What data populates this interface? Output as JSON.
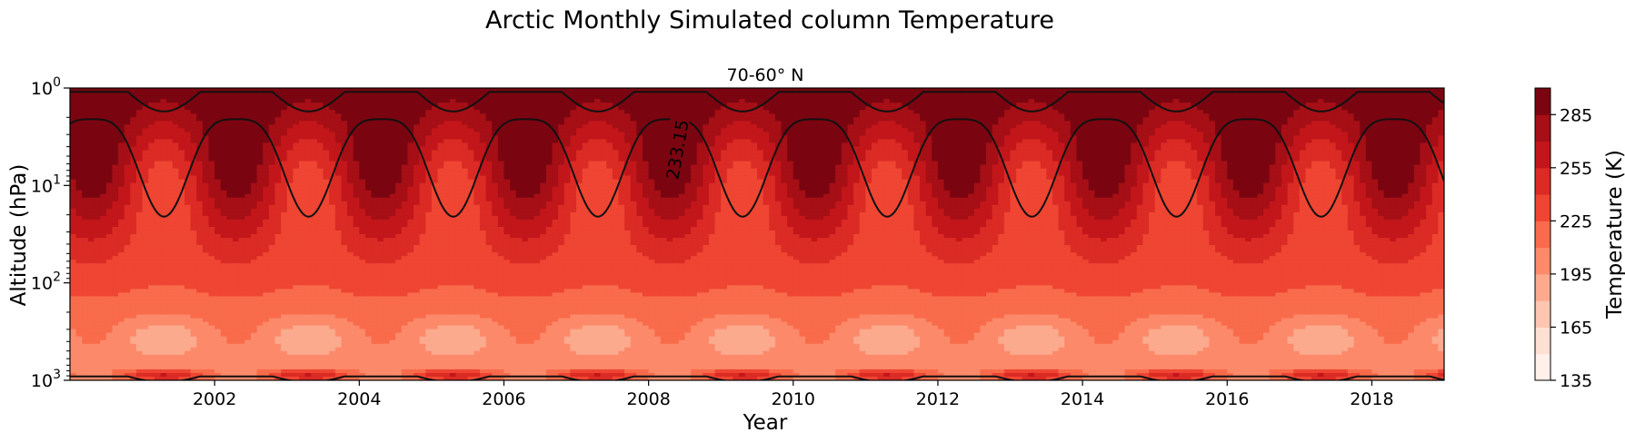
{
  "chart_data": {
    "type": "heatmap",
    "subtype": "filled-contour",
    "title": "Arctic Monthly Simulated column Temperature",
    "subtitle": "70-60° N",
    "xlabel": "Year",
    "ylabel": "Altitude (hPa)",
    "x_ticks": [
      "2002",
      "2004",
      "2006",
      "2008",
      "2010",
      "2012",
      "2014",
      "2016",
      "2018"
    ],
    "x_tick_values": [
      2002,
      2004,
      2006,
      2008,
      2010,
      2012,
      2014,
      2016,
      2018
    ],
    "xlim": [
      2000,
      2019
    ],
    "y_scale": "log",
    "y_inverted": true,
    "y_ticks": [
      {
        "base": "10",
        "exp": "0",
        "value": 1
      },
      {
        "base": "10",
        "exp": "1",
        "value": 10
      },
      {
        "base": "10",
        "exp": "2",
        "value": 100
      },
      {
        "base": "10",
        "exp": "3",
        "value": 1000
      }
    ],
    "ylim": [
      1000,
      1
    ],
    "colorbar": {
      "label": "Temperature (K)",
      "ticks": [
        "135",
        "165",
        "195",
        "225",
        "255",
        "285"
      ],
      "tick_values": [
        135,
        165,
        195,
        225,
        255,
        285
      ],
      "range": [
        135,
        300
      ],
      "levels": [
        135,
        150,
        165,
        180,
        195,
        210,
        225,
        240,
        255,
        270,
        285,
        300
      ],
      "colors": [
        "#fff0e9",
        "#fee0d2",
        "#fdc6b0",
        "#fcaa8e",
        "#fc8a6a",
        "#f86b4b",
        "#ef4533",
        "#db2b24",
        "#c2161b",
        "#a50f15",
        "#7a0510"
      ]
    },
    "contour_lines": [
      {
        "value": 233.15,
        "label": "233.15",
        "color": "#000000"
      }
    ],
    "seasonal_period_years": 2,
    "grid": false,
    "legend": "colorbar-right"
  }
}
